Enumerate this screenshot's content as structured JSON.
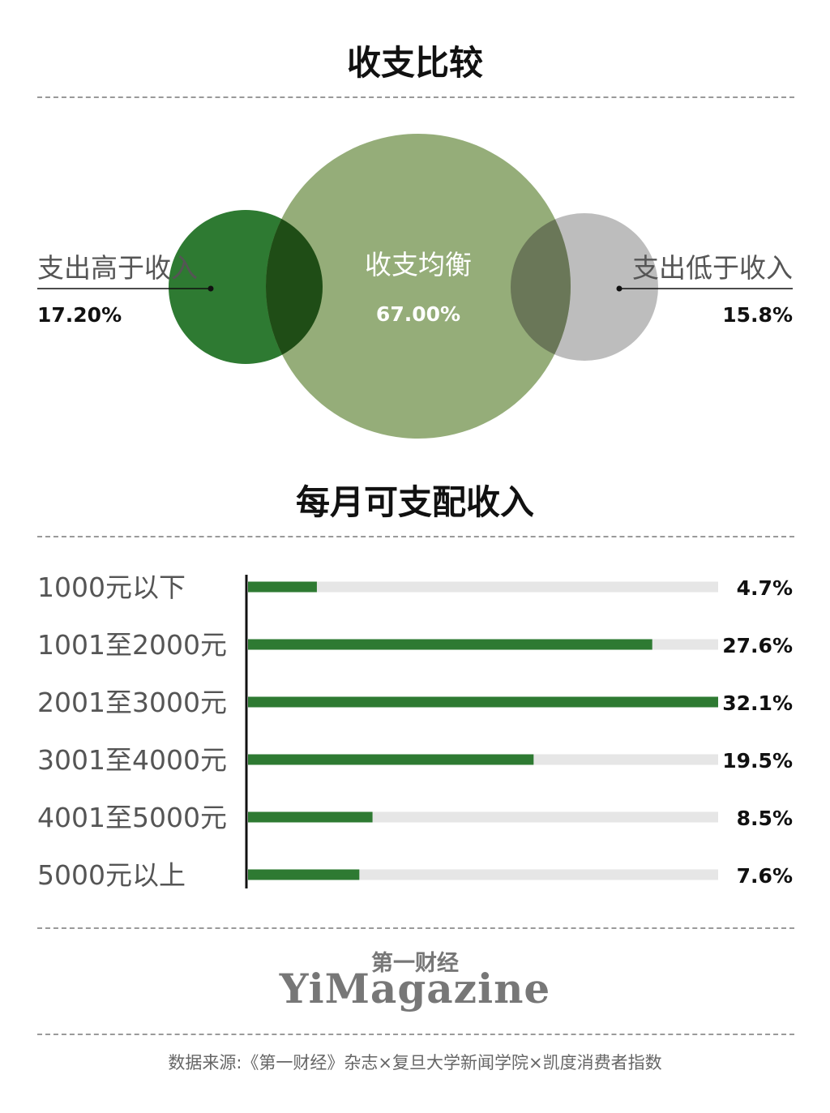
{
  "colors": {
    "dark_green": "#2e7a32",
    "olive_green": "#8aa46a",
    "grey": "#bdbdbd",
    "track": "#e6e6e6"
  },
  "chart_data": [
    {
      "type": "venn",
      "title": "收支比较",
      "sets": [
        {
          "label": "支出高于收入",
          "value": "17.20%",
          "percent": 17.2,
          "color": "#2e7a32"
        },
        {
          "label": "收支均衡",
          "value": "67.00%",
          "percent": 67.0,
          "color": "#8aa46a"
        },
        {
          "label": "支出低于收入",
          "value": "15.8%",
          "percent": 15.8,
          "color": "#bdbdbd"
        }
      ]
    },
    {
      "type": "bar",
      "title": "每月可支配收入",
      "categories": [
        "1000元以下",
        "1001至2000元",
        "2001至3000元",
        "3001至4000元",
        "4001至5000元",
        "5000元以上"
      ],
      "values": [
        4.7,
        27.6,
        32.1,
        19.5,
        8.5,
        7.6
      ],
      "value_labels": [
        "4.7%",
        "27.6%",
        "32.1%",
        "19.5%",
        "8.5%",
        "7.6%"
      ],
      "xlim": [
        0,
        32.1
      ],
      "color": "#2e7a32",
      "track_color": "#e6e6e6"
    }
  ],
  "footer": {
    "logo_cn": "第一财经",
    "logo_en": "YiMagazine",
    "source": "数据来源:《第一财经》杂志×复旦大学新闻学院×凯度消费者指数"
  }
}
